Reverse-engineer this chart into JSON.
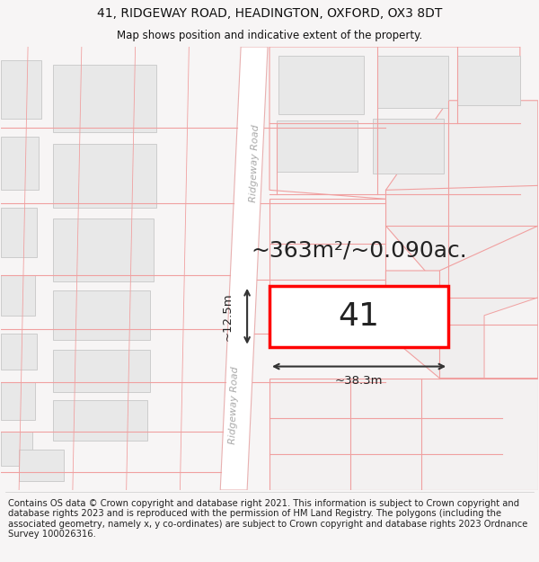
{
  "title": "41, RIDGEWAY ROAD, HEADINGTON, OXFORD, OX3 8DT",
  "subtitle": "Map shows position and indicative extent of the property.",
  "footer": "Contains OS data © Crown copyright and database right 2021. This information is subject to Crown copyright and database rights 2023 and is reproduced with the permission of HM Land Registry. The polygons (including the associated geometry, namely x, y co-ordinates) are subject to Crown copyright and database rights 2023 Ordnance Survey 100026316.",
  "area_text": "~363m²/~0.090ac.",
  "dim_width": "~38.3m",
  "dim_height": "~12.5m",
  "property_number": "41",
  "map_bg": "#f7f5f5",
  "road_fill": "#ffffff",
  "road_edge": "#e8b0b0",
  "parcel_line": "#f0a0a0",
  "block_fill": "#e8e8e8",
  "block_edge": "#cccccc",
  "prop_fill": "#ffffff",
  "prop_edge": "#ff0000",
  "title_fontsize": 10,
  "subtitle_fontsize": 8.5,
  "footer_fontsize": 7.2,
  "area_fontsize": 18,
  "number_fontsize": 26,
  "dim_fontsize": 9.5,
  "road_label_fontsize": 8
}
